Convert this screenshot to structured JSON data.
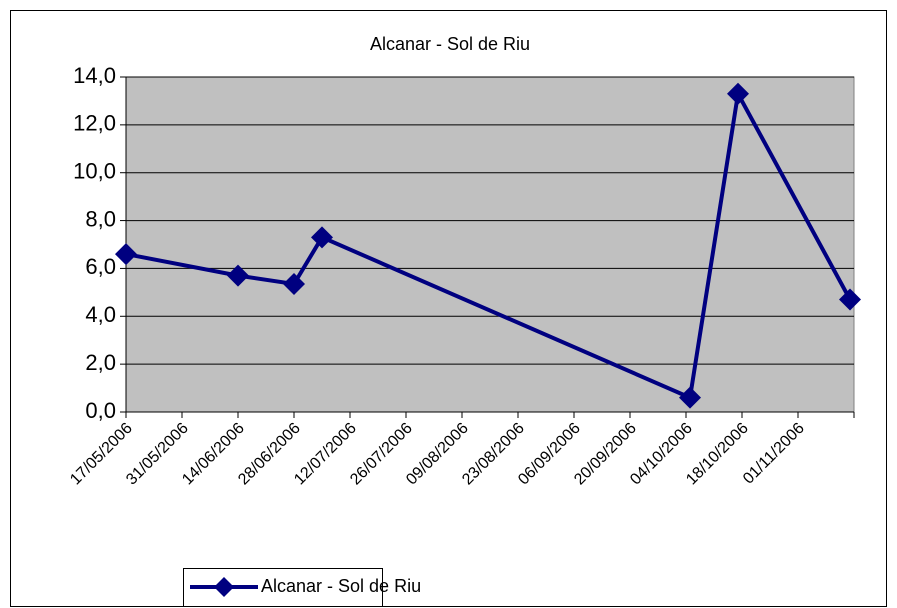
{
  "chart_data": {
    "type": "line",
    "title": "Alcanar - Sol de Riu",
    "x": [
      "17/05/2006",
      "14/06/2006",
      "28/06/2006",
      "05/07/2006",
      "05/10/2006",
      "17/10/2006",
      "14/11/2006"
    ],
    "series": [
      {
        "name": "Alcanar - Sol de Riu",
        "color": "#000080",
        "values": [
          6.6,
          5.7,
          5.35,
          7.3,
          0.6,
          13.3,
          4.7
        ]
      }
    ],
    "xlim": [
      "17/05/2006",
      "15/11/2006"
    ],
    "xticks": [
      "17/05/2006",
      "31/05/2006",
      "14/06/2006",
      "28/06/2006",
      "12/07/2006",
      "26/07/2006",
      "09/08/2006",
      "23/08/2006",
      "06/09/2006",
      "20/09/2006",
      "04/10/2006",
      "18/10/2006",
      "01/11/2006"
    ],
    "ylim": [
      0,
      14
    ],
    "yticks": [
      {
        "value": 0,
        "label": "0,0"
      },
      {
        "value": 2,
        "label": "2,0"
      },
      {
        "value": 4,
        "label": "4,0"
      },
      {
        "value": 6,
        "label": "6,0"
      },
      {
        "value": 8,
        "label": "8,0"
      },
      {
        "value": 10,
        "label": "10,0"
      },
      {
        "value": 12,
        "label": "12,0"
      },
      {
        "value": 14,
        "label": "14,0"
      }
    ],
    "grid": true,
    "legend": "bottom"
  }
}
